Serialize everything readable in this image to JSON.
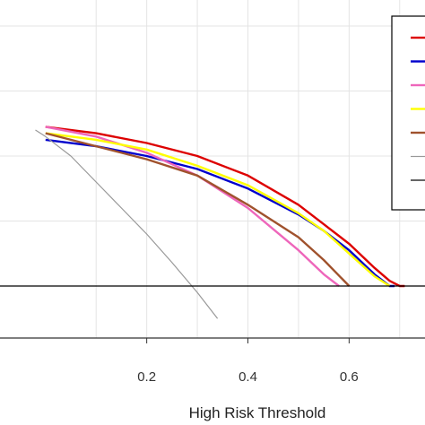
{
  "chart_data": {
    "type": "line",
    "title": "",
    "xlabel": "High Risk Threshold",
    "ylabel": "",
    "xlim": [
      -0.09,
      0.75
    ],
    "ylim": [
      -0.08,
      0.44
    ],
    "x_ticks": [
      "0.2",
      "0.4",
      "0.6"
    ],
    "grid": true,
    "legend_position": "top-right",
    "colors": {
      "red": "#dd0000",
      "blue": "#0000cc",
      "pink": "#ee66bb",
      "yellow": "#ffff00",
      "brown": "#a0522d",
      "gray": "#999999",
      "black": "#000000"
    },
    "series": [
      {
        "color": "red",
        "x": [
          0.0,
          0.1,
          0.2,
          0.3,
          0.4,
          0.5,
          0.55,
          0.6,
          0.65,
          0.68,
          0.7,
          0.71
        ],
        "y": [
          0.245,
          0.235,
          0.22,
          0.2,
          0.17,
          0.125,
          0.095,
          0.065,
          0.028,
          0.008,
          0.0,
          0.0
        ]
      },
      {
        "color": "blue",
        "x": [
          0.0,
          0.1,
          0.2,
          0.3,
          0.4,
          0.5,
          0.55,
          0.6,
          0.65,
          0.68,
          0.69
        ],
        "y": [
          0.225,
          0.215,
          0.2,
          0.18,
          0.15,
          0.11,
          0.085,
          0.055,
          0.018,
          0.0,
          0.0
        ]
      },
      {
        "color": "pink",
        "x": [
          0.0,
          0.1,
          0.2,
          0.3,
          0.4,
          0.5,
          0.55,
          0.58
        ],
        "y": [
          0.245,
          0.23,
          0.205,
          0.17,
          0.12,
          0.055,
          0.018,
          0.0
        ]
      },
      {
        "color": "yellow",
        "x": [
          0.0,
          0.1,
          0.2,
          0.3,
          0.4,
          0.5,
          0.55,
          0.6,
          0.65,
          0.68
        ],
        "y": [
          0.235,
          0.225,
          0.21,
          0.185,
          0.155,
          0.112,
          0.085,
          0.05,
          0.015,
          0.0
        ]
      },
      {
        "color": "brown",
        "x": [
          0.0,
          0.1,
          0.2,
          0.3,
          0.4,
          0.5,
          0.55,
          0.6
        ],
        "y": [
          0.235,
          0.215,
          0.195,
          0.17,
          0.125,
          0.075,
          0.04,
          0.0
        ]
      },
      {
        "color": "gray",
        "x": [
          -0.02,
          0.0,
          0.05,
          0.1,
          0.15,
          0.2,
          0.25,
          0.3,
          0.34
        ],
        "y": [
          0.24,
          0.23,
          0.2,
          0.16,
          0.12,
          0.08,
          0.036,
          -0.01,
          -0.05
        ]
      },
      {
        "color": "black",
        "x": [
          -0.09,
          0.75
        ],
        "y": [
          0.0,
          0.0
        ]
      }
    ],
    "legend": {
      "entries": [
        {
          "color": "red"
        },
        {
          "color": "blue"
        },
        {
          "color": "pink"
        },
        {
          "color": "yellow"
        },
        {
          "color": "brown"
        },
        {
          "color": "gray"
        },
        {
          "color": "black"
        }
      ]
    }
  }
}
